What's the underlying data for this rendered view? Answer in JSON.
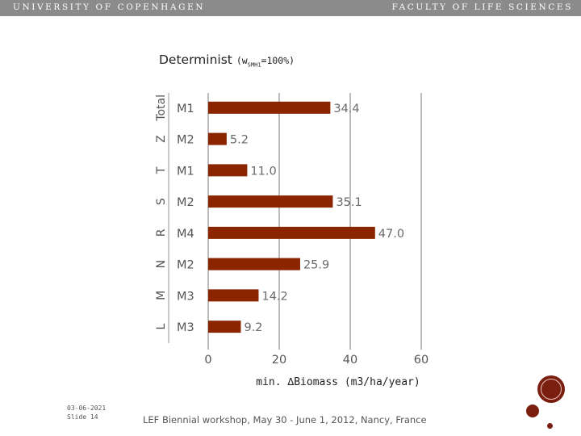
{
  "header": {
    "university": "UNIVERSITY OF COPENHAGEN",
    "faculty": "FACULTY OF LIFE SCIENCES"
  },
  "chart_data": {
    "type": "bar",
    "orientation": "horizontal",
    "title": "Determinist",
    "subtitle": {
      "prefix": "(w",
      "subscript": "SMH1",
      "suffix": "=100%)"
    },
    "groups": [
      "Total",
      "Z",
      "T",
      "S",
      "R",
      "N",
      "M",
      "L"
    ],
    "categories": [
      "M1",
      "M2",
      "M1",
      "M2",
      "M4",
      "M2",
      "M3",
      "M3"
    ],
    "values": [
      34.4,
      5.2,
      11.0,
      35.1,
      47.0,
      25.9,
      14.2,
      9.2
    ],
    "xlabel": "min. ∆Biomass (m3/ha/year)",
    "xlim": [
      0,
      60
    ],
    "xticks": [
      0,
      20,
      40,
      60
    ],
    "grid": true,
    "bar_color": "#8b2500"
  },
  "footer": {
    "date": "03-06-2021",
    "slide": "Slide 14",
    "text": "LEF Biennial workshop, May 30 - June 1, 2012, Nancy, France"
  },
  "colors": {
    "header_bg": "#8b8b8b",
    "accent": "#7a1f10"
  }
}
